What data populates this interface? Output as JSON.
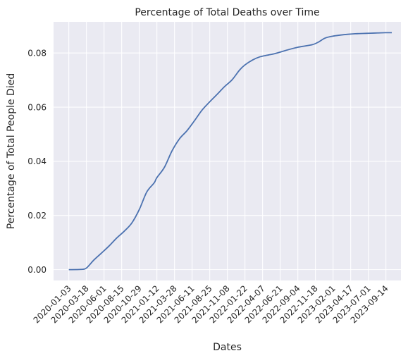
{
  "chart_data": {
    "type": "line",
    "title": "Percentage of Total Deaths over Time",
    "xlabel": "Dates",
    "ylabel": "Percentage of Total People Died",
    "grid": true,
    "legend": "none",
    "colors": {
      "background": "#eaeaf2",
      "grid": "#ffffff",
      "line": "#4c72b0"
    },
    "xlim": [
      "2019-10-30",
      "2023-11-17"
    ],
    "ylim": [
      -0.004,
      0.0915
    ],
    "x_ticks": [
      "2020-01-03",
      "2020-03-18",
      "2020-06-01",
      "2020-08-15",
      "2020-10-29",
      "2021-01-12",
      "2021-03-28",
      "2021-06-11",
      "2021-08-25",
      "2021-11-08",
      "2022-01-22",
      "2022-04-07",
      "2022-06-21",
      "2022-09-04",
      "2022-11-18",
      "2023-02-01",
      "2023-04-17",
      "2023-07-01",
      "2023-09-14"
    ],
    "y_ticks": [
      0.0,
      0.02,
      0.04,
      0.06,
      0.08
    ],
    "y_tick_labels": [
      "0.00",
      "0.02",
      "0.04",
      "0.06",
      "0.08"
    ],
    "series": [
      {
        "x": [
          "2020-01-03",
          "2020-02-24",
          "2020-03-18",
          "2020-04-18",
          "2020-05-22",
          "2020-06-23",
          "2020-07-25",
          "2020-08-26",
          "2020-09-27",
          "2020-10-29",
          "2020-11-30",
          "2020-12-31",
          "2021-01-12",
          "2021-02-13",
          "2021-03-17",
          "2021-04-18",
          "2021-05-20",
          "2021-06-21",
          "2021-07-23",
          "2021-08-24",
          "2021-09-25",
          "2021-10-27",
          "2021-11-28",
          "2021-12-30",
          "2022-01-22",
          "2022-02-23",
          "2022-03-27",
          "2022-04-28",
          "2022-05-30",
          "2022-07-01",
          "2022-08-02",
          "2022-09-03",
          "2022-10-05",
          "2022-11-06",
          "2022-11-30",
          "2022-12-29",
          "2023-01-30",
          "2023-03-03",
          "2023-04-04",
          "2023-05-06",
          "2023-06-07",
          "2023-07-09",
          "2023-08-10",
          "2023-09-11",
          "2023-10-09"
        ],
        "y": [
          0.0,
          0.0001,
          0.0006,
          0.0035,
          0.0062,
          0.0088,
          0.0117,
          0.0142,
          0.0172,
          0.0222,
          0.0287,
          0.032,
          0.034,
          0.0378,
          0.0438,
          0.0483,
          0.0513,
          0.055,
          0.0589,
          0.0619,
          0.0647,
          0.0676,
          0.0701,
          0.0737,
          0.0756,
          0.0774,
          0.0786,
          0.0792,
          0.0798,
          0.0806,
          0.0814,
          0.0821,
          0.0826,
          0.0831,
          0.084,
          0.0855,
          0.0862,
          0.0866,
          0.0869,
          0.0871,
          0.0872,
          0.0873,
          0.0874,
          0.0875,
          0.0875
        ]
      }
    ]
  }
}
